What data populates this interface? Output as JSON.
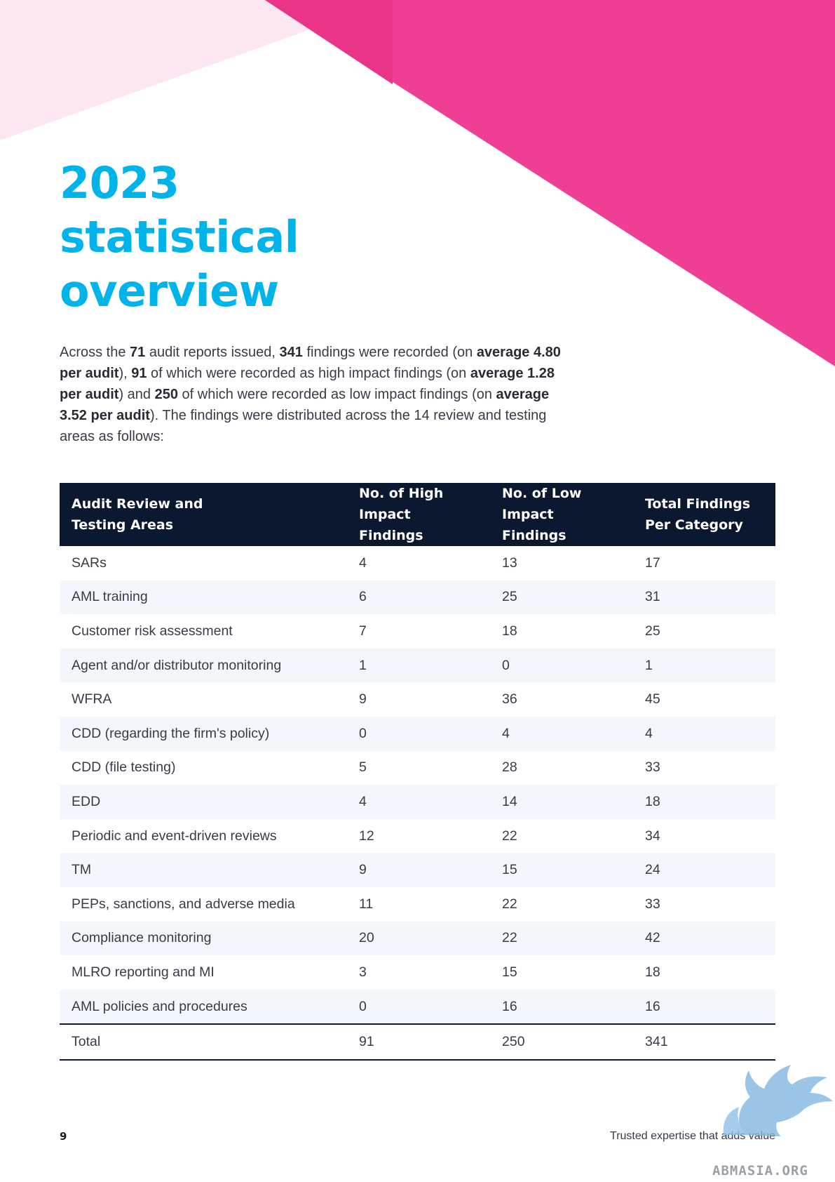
{
  "title": {
    "line1": "2023",
    "line2": "statistical",
    "line3": "overview"
  },
  "intro": {
    "t1": "Across the ",
    "reports": "71",
    "t2": " audit reports issued, ",
    "findings": "341",
    "t3": " findings were recorded (on ",
    "avg_total": "average 4.80 per audit",
    "t4": "), ",
    "high": "91",
    "t5": " of which were recorded as high impact findings (on ",
    "avg_high": "average 1.28 per audit",
    "t6": ") and ",
    "low": "250",
    "t7": " of which were recorded as low impact findings (on ",
    "avg_label": "average",
    "avg_low_value": " 3.52 per audit",
    "t8": "). The findings were distributed across the 14 review and testing areas as follows:"
  },
  "table": {
    "headers": [
      {
        "line1": "Audit Review and",
        "line2": "Testing Areas"
      },
      {
        "line1": "No. of High",
        "line2": "Impact Findings"
      },
      {
        "line1": "No. of Low",
        "line2": "Impact Findings"
      },
      {
        "line1": "Total Findings",
        "line2": "Per Category"
      }
    ],
    "rows": [
      {
        "area": "SARs",
        "high": "4",
        "low": "13",
        "total": "17"
      },
      {
        "area": "AML training",
        "high": "6",
        "low": "25",
        "total": "31"
      },
      {
        "area": "Customer risk assessment",
        "high": "7",
        "low": "18",
        "total": "25"
      },
      {
        "area": "Agent and/or distributor monitoring",
        "high": "1",
        "low": "0",
        "total": "1"
      },
      {
        "area": "WFRA",
        "high": "9",
        "low": "36",
        "total": "45"
      },
      {
        "area": "CDD (regarding the firm's policy)",
        "high": "0",
        "low": "4",
        "total": "4"
      },
      {
        "area": "CDD (file testing)",
        "high": "5",
        "low": "28",
        "total": "33"
      },
      {
        "area": "EDD",
        "high": "4",
        "low": "14",
        "total": "18"
      },
      {
        "area": "Periodic and event-driven reviews",
        "high": "12",
        "low": "22",
        "total": "34"
      },
      {
        "area": "TM",
        "high": "9",
        "low": "15",
        "total": "24"
      },
      {
        "area": "PEPs, sanctions, and adverse media",
        "high": "11",
        "low": "22",
        "total": "33"
      },
      {
        "area": "Compliance monitoring",
        "high": "20",
        "low": "22",
        "total": "42"
      },
      {
        "area": "MLRO reporting and MI",
        "high": "3",
        "low": "15",
        "total": "18"
      },
      {
        "area": "AML policies and procedures",
        "high": "0",
        "low": "16",
        "total": "16"
      }
    ],
    "total": {
      "area": "Total",
      "high": "91",
      "low": "250",
      "total": "341"
    }
  },
  "footer": {
    "page_number": "9",
    "tagline": "Trusted expertise that adds value"
  },
  "watermark": {
    "text": "ABMASIA.ORG"
  },
  "colors": {
    "accent": "#00b4ea",
    "pink": "#ee3f95",
    "pink_light": "#fce6f1",
    "header_bg": "#0c1730"
  }
}
